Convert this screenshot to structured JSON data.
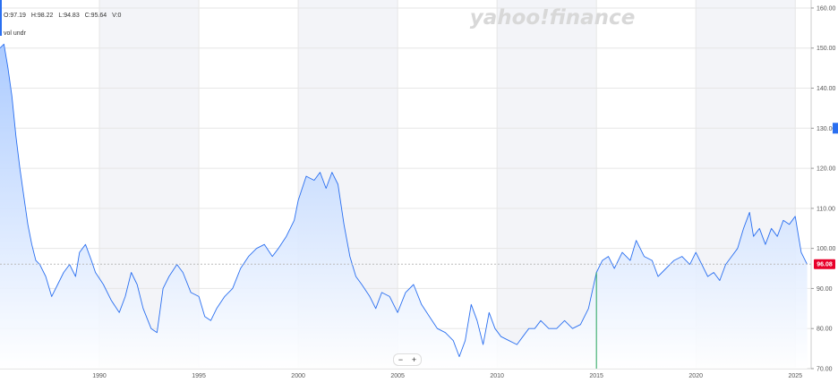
{
  "ohlc": {
    "open": "O:97.19",
    "high": "H:98.22",
    "low": "L:94.83",
    "close": "C:95.64",
    "volume": "V:0"
  },
  "vol_label": "vol undr",
  "watermark": "yahoo!finance",
  "zoom": {
    "minus": "−",
    "plus": "+"
  },
  "price_badge": {
    "label": "96.08",
    "color": "#e8002a"
  },
  "side_marker_color": "#2a6ff0",
  "colors": {
    "line": "#2a6ff0",
    "fill_top": "#a7c8ff",
    "fill_bottom": "#ffffff",
    "grid": "#e6e6e6",
    "band": "#f3f4f8",
    "marker": "#22a35a",
    "watermark": "#d8d8d8",
    "dashed": "#bbbbbb"
  },
  "chart_data": {
    "type": "area",
    "title": "",
    "xlabel": "",
    "ylabel": "",
    "xlim": [
      1985.0,
      2025.8
    ],
    "ylim": [
      70,
      162
    ],
    "x_ticks": [
      "1990",
      "1995",
      "2000",
      "2005",
      "2010",
      "2015",
      "2020",
      "2025"
    ],
    "y_ticks": [
      "70.00",
      "80.00",
      "90.00",
      "100.00",
      "110.00",
      "120.00",
      "130.00",
      "140.00",
      "150.00",
      "160.00"
    ],
    "current_price": 96.08,
    "marker_x": 2015.0,
    "grid": true,
    "series": [
      {
        "x": [
          1985.0,
          1985.2,
          1985.4,
          1985.6,
          1985.8,
          1986.0,
          1986.2,
          1986.4,
          1986.6,
          1986.8,
          1987.0,
          1987.3,
          1987.6,
          1987.9,
          1988.2,
          1988.5,
          1988.8,
          1989.0,
          1989.3,
          1989.6,
          1989.8,
          1990.2,
          1990.6,
          1991.0,
          1991.3,
          1991.6,
          1991.9,
          1992.2,
          1992.6,
          1992.9,
          1993.2,
          1993.5,
          1993.9,
          1994.2,
          1994.6,
          1995.0,
          1995.3,
          1995.6,
          1995.9,
          1996.3,
          1996.7,
          1997.1,
          1997.5,
          1997.9,
          1998.3,
          1998.7,
          1999.0,
          1999.4,
          1999.8,
          2000.0,
          2000.4,
          2000.8,
          2001.1,
          2001.4,
          2001.7,
          2002.0,
          2002.3,
          2002.6,
          2002.9,
          2003.2,
          2003.6,
          2003.9,
          2004.2,
          2004.6,
          2005.0,
          2005.4,
          2005.8,
          2006.2,
          2006.6,
          2007.0,
          2007.4,
          2007.8,
          2008.1,
          2008.4,
          2008.7,
          2009.0,
          2009.3,
          2009.6,
          2009.9,
          2010.2,
          2010.6,
          2011.0,
          2011.3,
          2011.6,
          2011.9,
          2012.2,
          2012.6,
          2013.0,
          2013.4,
          2013.8,
          2014.2,
          2014.6,
          2015.0,
          2015.3,
          2015.6,
          2015.9,
          2016.3,
          2016.7,
          2017.0,
          2017.4,
          2017.8,
          2018.1,
          2018.5,
          2018.9,
          2019.3,
          2019.7,
          2020.0,
          2020.3,
          2020.6,
          2020.9,
          2021.2,
          2021.5,
          2021.8,
          2022.1,
          2022.4,
          2022.7,
          2022.9,
          2023.2,
          2023.5,
          2023.8,
          2024.1,
          2024.4,
          2024.7,
          2025.0,
          2025.3,
          2025.6
        ],
        "values": [
          150,
          151,
          145,
          138,
          128,
          120,
          113,
          106,
          101,
          97,
          96,
          93,
          88,
          91,
          94,
          96,
          93,
          99,
          101,
          97,
          94,
          91,
          87,
          84,
          88,
          94,
          91,
          85,
          80,
          79,
          90,
          93,
          96,
          94,
          89,
          88,
          83,
          82,
          85,
          88,
          90,
          95,
          98,
          100,
          101,
          98,
          100,
          103,
          107,
          112,
          118,
          117,
          119,
          115,
          119,
          116,
          106,
          98,
          93,
          91,
          88,
          85,
          89,
          88,
          84,
          89,
          91,
          86,
          83,
          80,
          79,
          77,
          73,
          77,
          86,
          82,
          76,
          84,
          80,
          78,
          77,
          76,
          78,
          80,
          80,
          82,
          80,
          80,
          82,
          80,
          81,
          85,
          94,
          97,
          98,
          95,
          99,
          97,
          102,
          98,
          97,
          93,
          95,
          97,
          98,
          96,
          99,
          96,
          93,
          94,
          92,
          96,
          98,
          100,
          105,
          109,
          103,
          105,
          101,
          105,
          103,
          107,
          106,
          108,
          99,
          96
        ]
      }
    ]
  }
}
